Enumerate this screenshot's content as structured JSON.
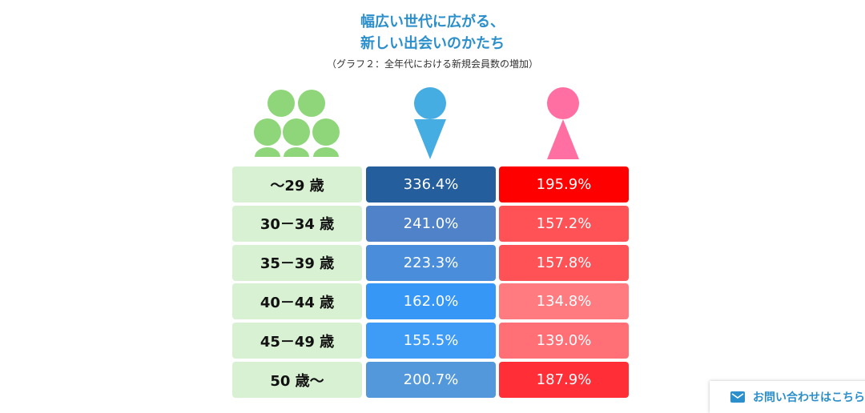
{
  "header": {
    "title": [
      "幅広い世代に広がる、",
      "新しい出会いのかたち"
    ],
    "subtitle": "（グラフ２：全年代における新規会員数の増加）"
  },
  "table": {
    "rows": [
      [
        "～29 歳",
        "336.4%",
        "195.9%"
      ],
      [
        "30－34 歳",
        "241.0%",
        "157.2%"
      ],
      [
        "35－39 歳",
        "223.3%",
        "157.8%"
      ],
      [
        "40－44 歳",
        "162.0%",
        "134.8%"
      ],
      [
        "45－49 歳",
        "155.5%",
        "139.0%"
      ],
      [
        "50 歳～",
        "200.7%",
        "187.9%"
      ]
    ]
  },
  "contact": {
    "label": "お問い合わせはこちら"
  }
}
